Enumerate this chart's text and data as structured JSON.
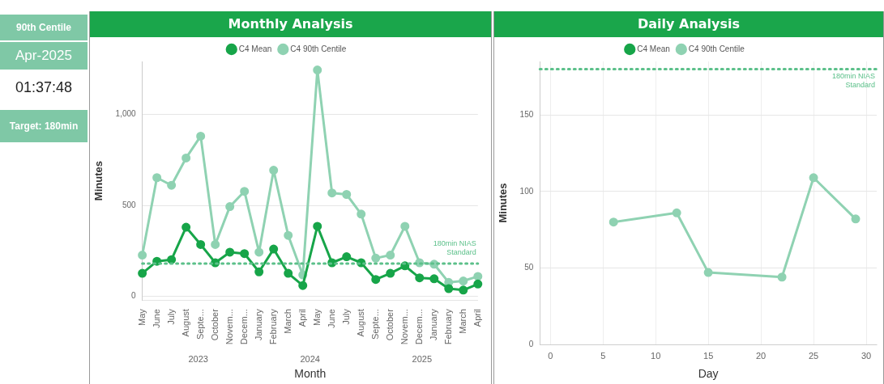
{
  "chart_data": [
    {
      "type": "other",
      "annotations": [
        "90th Centile",
        "Apr-2025",
        "01:37:48",
        "Target: 180min"
      ]
    },
    {
      "type": "line",
      "title": "Monthly Analysis",
      "xlabel": "Month",
      "ylabel": "Minutes",
      "categories": [
        "May",
        "June",
        "July",
        "August",
        "Septe...",
        "October",
        "Novem...",
        "Decem...",
        "January",
        "February",
        "March",
        "April",
        "May",
        "June",
        "July",
        "August",
        "Septe...",
        "October",
        "Novem...",
        "Decem...",
        "January",
        "February",
        "March",
        "April"
      ],
      "series": [
        {
          "name": "C4 Mean",
          "color": "#17a549",
          "values": [
            127,
            193,
            202,
            380,
            285,
            185,
            243,
            235,
            135,
            260,
            127,
            60,
            385,
            185,
            218,
            185,
            93,
            127,
            168,
            102,
            97,
            43,
            35,
            68
          ]
        },
        {
          "name": "C4 90th Centile",
          "color": "#8fd2b2",
          "values": [
            227,
            652,
            610,
            760,
            880,
            285,
            493,
            577,
            243,
            693,
            335,
            118,
            1243,
            568,
            560,
            452,
            210,
            227,
            385,
            185,
            177,
            77,
            85,
            110
          ]
        }
      ],
      "ylim": [
        -20,
        1290
      ],
      "yticks": [
        0,
        500,
        {
          "value": 1000,
          "label": "1,000"
        }
      ],
      "ref_lines": [
        {
          "axis": "y",
          "value": 180,
          "label": "180min NIAS Standard",
          "color": "#5cc08a",
          "line_style": "dotted"
        }
      ],
      "annotations": [
        "2023",
        "2024",
        "2025"
      ],
      "grid": "y",
      "legend": "top",
      "marker": "circle",
      "line_style": "solid"
    },
    {
      "type": "line",
      "title": "Daily Analysis",
      "xlabel": "Day",
      "ylabel": "Minutes",
      "x": [
        6,
        12,
        15,
        22,
        25,
        29
      ],
      "series": [
        {
          "name": "C4 Mean",
          "color": "#17a549",
          "values": [
            null,
            null,
            null,
            null,
            null,
            null
          ]
        },
        {
          "name": "C4 90th Centile",
          "color": "#8fd2b2",
          "values": [
            80,
            86,
            47,
            44,
            109,
            82
          ]
        }
      ],
      "xlim": [
        -1,
        31
      ],
      "xticks": [
        0,
        5,
        10,
        15,
        20,
        25,
        30
      ],
      "ylim": [
        0,
        185
      ],
      "yticks": [
        0,
        50,
        100,
        150
      ],
      "ref_lines": [
        {
          "axis": "y",
          "value": 180,
          "label": "180min NIAS Standard",
          "color": "#5cc08a",
          "line_style": "dotted"
        }
      ],
      "grid": true,
      "legend": "top",
      "marker": "circle",
      "line_style": "solid"
    }
  ]
}
